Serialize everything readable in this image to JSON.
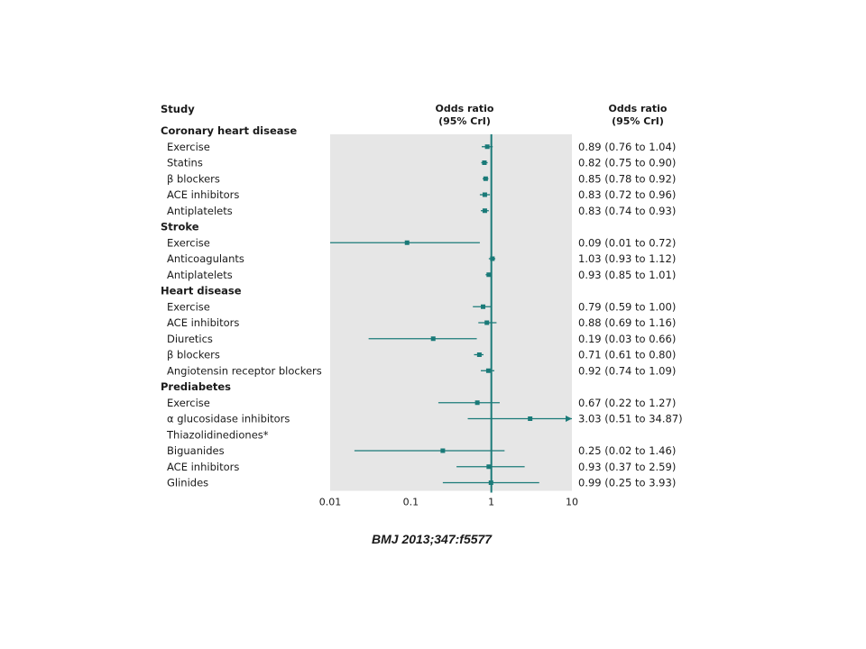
{
  "headers": {
    "study": "Study",
    "or_line1": "Odds ratio",
    "or_line2": "(95% CrI)",
    "col_line1": "Odds ratio",
    "col_line2": "(95% CrI)"
  },
  "citation": "BMJ 2013;347:f5577",
  "colors": {
    "marker": "#1a7a78",
    "panel": "#e6e6e6",
    "text": "#1a1a1a"
  },
  "chart_data": {
    "type": "forest",
    "x_scale": "log",
    "xlim": [
      0.01,
      10
    ],
    "null_value": 1,
    "x_ticks": [
      "0.01",
      "0.1",
      "1",
      "10"
    ],
    "groups": [
      {
        "name": "Coronary heart disease",
        "rows": [
          {
            "label": "Exercise",
            "or": 0.89,
            "lo": 0.76,
            "hi": 1.04,
            "text": "0.89 (0.76 to 1.04)"
          },
          {
            "label": "Statins",
            "or": 0.82,
            "lo": 0.75,
            "hi": 0.9,
            "text": "0.82 (0.75 to 0.90)"
          },
          {
            "label": "β blockers",
            "or": 0.85,
            "lo": 0.78,
            "hi": 0.92,
            "text": "0.85 (0.78 to 0.92)"
          },
          {
            "label": "ACE inhibitors",
            "or": 0.83,
            "lo": 0.72,
            "hi": 0.96,
            "text": "0.83 (0.72 to 0.96)"
          },
          {
            "label": "Antiplatelets",
            "or": 0.83,
            "lo": 0.74,
            "hi": 0.93,
            "text": "0.83 (0.74 to 0.93)"
          }
        ]
      },
      {
        "name": "Stroke",
        "rows": [
          {
            "label": "Exercise",
            "or": 0.09,
            "lo": 0.01,
            "hi": 0.72,
            "text": "0.09 (0.01 to 0.72)"
          },
          {
            "label": "Anticoagulants",
            "or": 1.03,
            "lo": 0.93,
            "hi": 1.12,
            "text": "1.03 (0.93 to 1.12)"
          },
          {
            "label": "Antiplatelets",
            "or": 0.93,
            "lo": 0.85,
            "hi": 1.01,
            "text": "0.93 (0.85 to 1.01)"
          }
        ]
      },
      {
        "name": "Heart disease",
        "rows": [
          {
            "label": "Exercise",
            "or": 0.79,
            "lo": 0.59,
            "hi": 1.0,
            "text": "0.79 (0.59 to 1.00)"
          },
          {
            "label": "ACE inhibitors",
            "or": 0.88,
            "lo": 0.69,
            "hi": 1.16,
            "text": "0.88 (0.69 to 1.16)"
          },
          {
            "label": "Diuretics",
            "or": 0.19,
            "lo": 0.03,
            "hi": 0.66,
            "text": "0.19 (0.03 to 0.66)"
          },
          {
            "label": "β blockers",
            "or": 0.71,
            "lo": 0.61,
            "hi": 0.8,
            "text": "0.71 (0.61 to 0.80)"
          },
          {
            "label": "Angiotensin receptor blockers",
            "or": 0.92,
            "lo": 0.74,
            "hi": 1.09,
            "text": "0.92 (0.74 to 1.09)"
          }
        ]
      },
      {
        "name": "Prediabetes",
        "rows": [
          {
            "label": "Exercise",
            "or": 0.67,
            "lo": 0.22,
            "hi": 1.27,
            "text": "0.67 (0.22 to 1.27)"
          },
          {
            "label": "α glucosidase inhibitors",
            "or": 3.03,
            "lo": 0.51,
            "hi": 34.87,
            "text": "3.03 (0.51 to 34.87)"
          },
          {
            "label": "Thiazolidinediones*",
            "or": null,
            "lo": null,
            "hi": null,
            "text": ""
          },
          {
            "label": "Biguanides",
            "or": 0.25,
            "lo": 0.02,
            "hi": 1.46,
            "text": "0.25 (0.02 to 1.46)"
          },
          {
            "label": "ACE inhibitors",
            "or": 0.93,
            "lo": 0.37,
            "hi": 2.59,
            "text": "0.93 (0.37 to 2.59)"
          },
          {
            "label": "Glinides",
            "or": 0.99,
            "lo": 0.25,
            "hi": 3.93,
            "text": "0.99 (0.25 to 3.93)"
          }
        ]
      }
    ]
  }
}
